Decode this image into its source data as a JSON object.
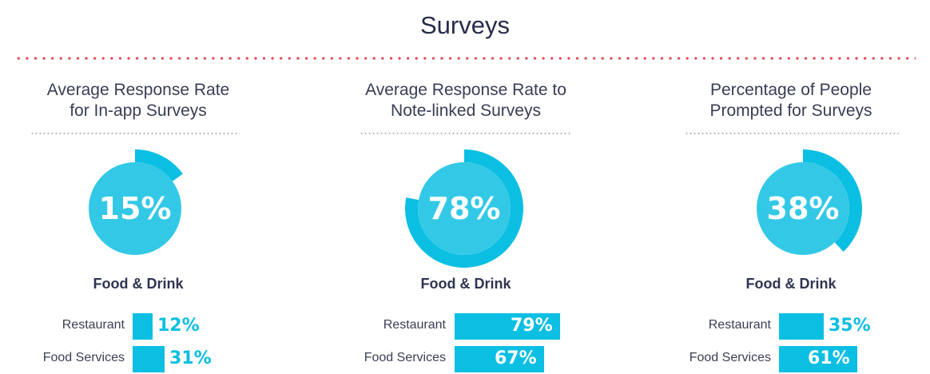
{
  "page": {
    "title": "Surveys"
  },
  "colors": {
    "accent": "#0bbfe3",
    "donut_inner": "#33c9e6",
    "divider": "#e2454f",
    "text": "#2e3550"
  },
  "chart_data": [
    {
      "type": "pie",
      "title": "Average Response Rate for In-app Surveys",
      "value": 15,
      "value_label": "15%",
      "subtitle": "Food & Drink",
      "bars": {
        "type": "bar",
        "categories": [
          "Restaurant",
          "Food Services"
        ],
        "values": [
          12,
          31
        ],
        "labels": [
          "12%",
          "31%"
        ]
      }
    },
    {
      "type": "pie",
      "title": "Average Response Rate to Note-linked Surveys",
      "value": 78,
      "value_label": "78%",
      "subtitle": "Food & Drink",
      "bars": {
        "type": "bar",
        "categories": [
          "Restaurant",
          "Food Services"
        ],
        "values": [
          79,
          67
        ],
        "labels": [
          "79%",
          "67%"
        ]
      }
    },
    {
      "type": "pie",
      "title": "Percentage of People Prompted for Surveys",
      "value": 38,
      "value_label": "38%",
      "subtitle": "Food & Drink",
      "bars": {
        "type": "bar",
        "categories": [
          "Restaurant",
          "Food Services"
        ],
        "values": [
          35,
          61
        ],
        "labels": [
          "35%",
          "61%"
        ]
      }
    }
  ]
}
